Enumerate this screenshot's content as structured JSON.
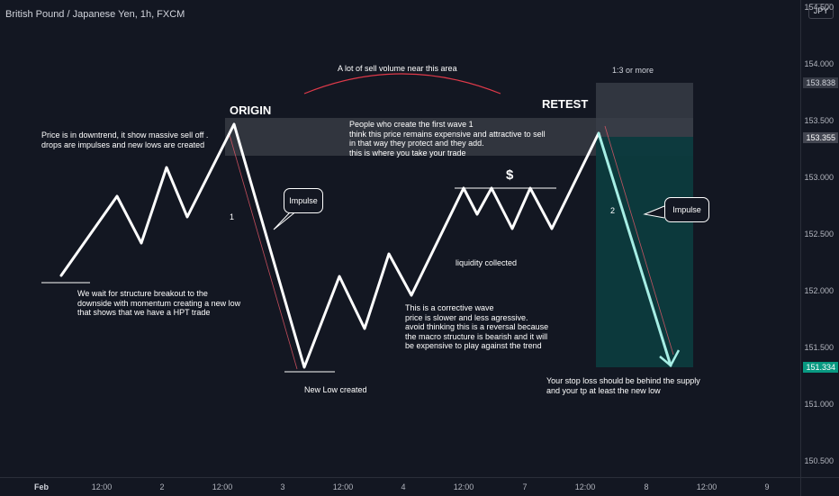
{
  "header": {
    "symbol_title": "British Pound / Japanese Yen, 1h, FXCM"
  },
  "currency_badge": "JPY",
  "price_axis": {
    "ticks": [
      "154.500",
      "154.000",
      "153.500",
      "153.000",
      "152.500",
      "152.000",
      "151.500",
      "151.000",
      "150.500"
    ],
    "labels": [
      {
        "text": "153.838",
        "bg": "#363a45",
        "color": "#d1d4dc"
      },
      {
        "text": "153.355",
        "bg": "#434651",
        "color": "#ffffff"
      },
      {
        "text": "151.334",
        "bg": "#089981",
        "color": "#ffffff"
      }
    ]
  },
  "time_axis": {
    "ticks": [
      "Feb",
      "12:00",
      "2",
      "12:00",
      "3",
      "12:00",
      "4",
      "12:00",
      "7",
      "12:00",
      "8",
      "12:00",
      "9"
    ]
  },
  "annotations": {
    "sell_volume": "A lot of sell volume  near this area",
    "ratio": "1:3 or more",
    "origin": "ORIGIN",
    "retest": "RETEST",
    "downtrend_note": [
      "Price is in downtrend, it show massive sell off .",
      "drops are impulses and new lows are created"
    ],
    "first_wave_note": [
      "People who create the first wave 1",
      "think this price remains expensive and attractive to sell",
      "in that way they protect and they add.",
      "this is where you take your trade"
    ],
    "dollar": "$",
    "impulse_1": "Impulse",
    "impulse_2": "Impulse",
    "wave_1": "1",
    "wave_2": "2",
    "liquidity": "liquidity collected",
    "structure_note": [
      "We wait for structure breakout to the",
      "downside with momentum creating a new low",
      "that shows that we have a HPT trade"
    ],
    "corrective_note": [
      "This is a corrective wave",
      "price is slower and less agressive.",
      "avoid thinking this is a reversal because",
      "the macro structure is bearish and it will",
      "be expensive to play against the trend"
    ],
    "new_low": "New Low created",
    "stop_loss_note": [
      "Your stop loss should be behind the supply",
      "and your tp at least the new low"
    ]
  },
  "colors": {
    "background": "#131722",
    "target_zone": "#0c3b3e",
    "risk_zone": "#3a3e49",
    "arc": "#e03a4a",
    "path": "#ffffff"
  }
}
